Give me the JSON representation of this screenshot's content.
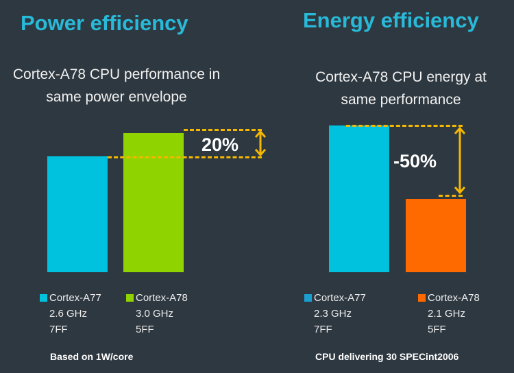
{
  "chart_data": [
    {
      "type": "bar",
      "title": "Power efficiency",
      "subtitle": "Cortex-A78 CPU performance in same power envelope",
      "categories": [
        "Cortex-A77",
        "Cortex-A78"
      ],
      "values": [
        100,
        120
      ],
      "legend": [
        {
          "name": "Cortex-A77",
          "freq": "2.6 GHz",
          "node": "7FF",
          "color": "#00c1de"
        },
        {
          "name": "Cortex-A78",
          "freq": "3.0 GHz",
          "node": "5FF",
          "color": "#8fd400"
        }
      ],
      "annotation": "20%",
      "note": "Based on 1W/core"
    },
    {
      "type": "bar",
      "title": "Energy efficiency",
      "subtitle": "Cortex-A78 CPU energy at same performance",
      "categories": [
        "Cortex-A77",
        "Cortex-A78"
      ],
      "values": [
        100,
        50
      ],
      "legend": [
        {
          "name": "Cortex-A77",
          "freq": "2.3 GHz",
          "node": "7FF",
          "color": "#00c1de"
        },
        {
          "name": "Cortex-A78",
          "freq": "2.1 GHz",
          "node": "5FF",
          "color": "#ff6a00"
        }
      ],
      "annotation": "-50%",
      "note": "CPU delivering 30 SPECint2006"
    }
  ]
}
